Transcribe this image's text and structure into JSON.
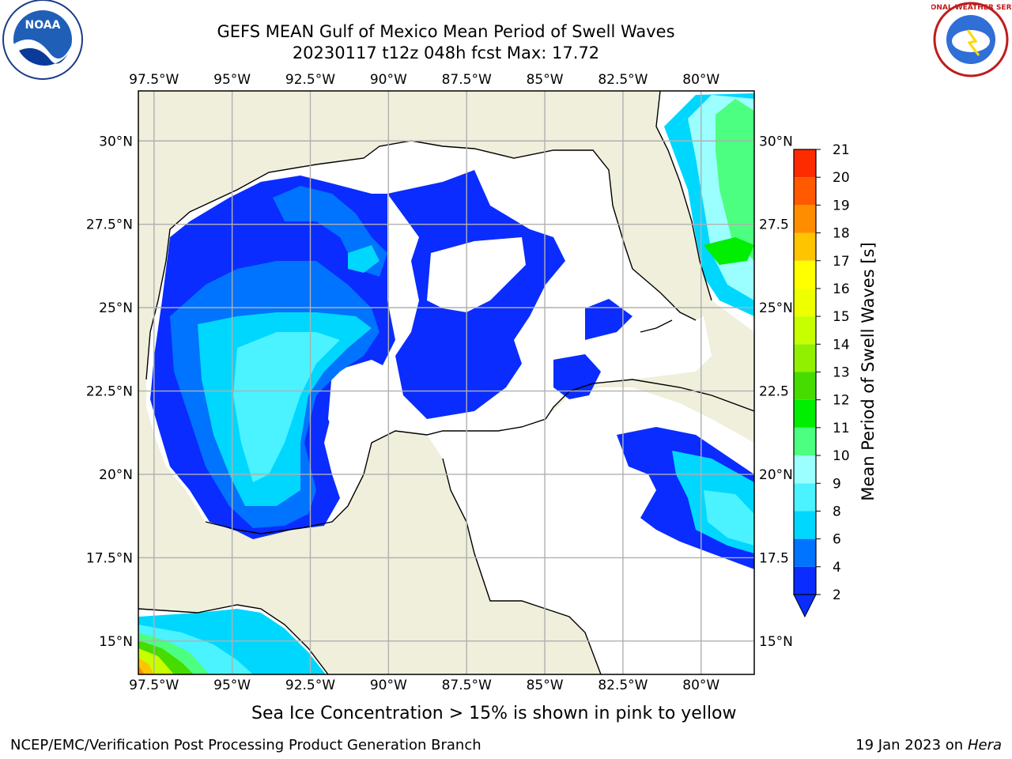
{
  "title": {
    "line1": "GEFS MEAN Gulf of Mexico Mean Period of Swell Waves",
    "line2": "20230117 t12z 048h fcst   Max: 17.72"
  },
  "logos": {
    "left": {
      "icon": "noaa-logo",
      "text": "NOAA"
    },
    "right": {
      "icon": "nws-logo",
      "text": "NATIONAL WEATHER SERVICE"
    }
  },
  "map": {
    "lon_labels": [
      "97.5°W",
      "95°W",
      "92.5°W",
      "90°W",
      "87.5°W",
      "85°W",
      "82.5°W",
      "80°W"
    ],
    "lat_labels_left": [
      "30°N",
      "27.5°N",
      "25°N",
      "22.5°N",
      "20°N",
      "17.5°N",
      "15°N"
    ],
    "lat_labels_right": [
      "30°N",
      "27.5",
      "25°N",
      "22.5",
      "20°N",
      "17.5",
      "15°N"
    ],
    "lon_values": [
      -97.5,
      -95,
      -92.5,
      -90,
      -87.5,
      -85,
      -82.5,
      -80
    ],
    "lat_values": [
      30,
      27.5,
      25,
      22.5,
      20,
      17.5,
      15
    ],
    "extent": {
      "lon_min": -98,
      "lon_max": -78.3,
      "lat_min": 14,
      "lat_max": 31.5
    },
    "land_color": "#efefdc",
    "ocean_color": "#ffffff"
  },
  "colorbar": {
    "label": "Mean Period of Swell Waves [s]",
    "ticks": [
      "2",
      "4",
      "6",
      "8",
      "9",
      "10",
      "11",
      "12",
      "13",
      "14",
      "15",
      "16",
      "17",
      "18",
      "19",
      "20",
      "21"
    ],
    "colors": [
      "#0a2cff",
      "#0073ff",
      "#00d7ff",
      "#4bf2ff",
      "#9cffff",
      "#4dff80",
      "#00ee00",
      "#46dc00",
      "#91f000",
      "#c8ff00",
      "#eeff00",
      "#ffff00",
      "#ffc400",
      "#ff8d00",
      "#ff5a00",
      "#ff2b00",
      "#ff0000"
    ]
  },
  "subtitle": "Sea Ice Concentration > 15% is shown in pink to yellow",
  "footer": {
    "left": "NCEP/EMC/Verification Post Processing Product Generation Branch",
    "right_prefix": "19 Jan 2023 on ",
    "right_system": "Hera"
  }
}
